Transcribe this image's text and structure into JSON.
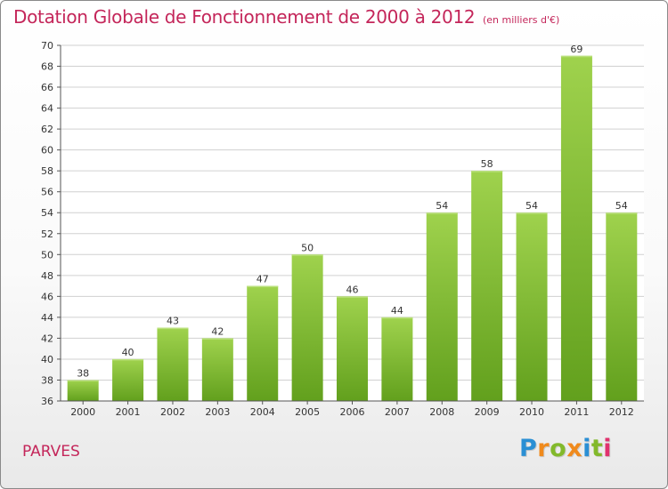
{
  "title": "Dotation Globale de Fonctionnement de 2000 à 2012",
  "subtitle": "(en milliers d'€)",
  "commune": "PARVES",
  "logo": {
    "text": "Proxiti",
    "letters": [
      {
        "ch": "P",
        "color": "#2a8fd4"
      },
      {
        "ch": "r",
        "color": "#f08a1c"
      },
      {
        "ch": "o",
        "color": "#82b92b"
      },
      {
        "ch": "x",
        "color": "#f08a1c"
      },
      {
        "ch": "i",
        "color": "#2a8fd4"
      },
      {
        "ch": "t",
        "color": "#82b92b"
      },
      {
        "ch": "i",
        "color": "#e0326e"
      }
    ]
  },
  "colors": {
    "title": "#c4265a",
    "bar_top": "#9fd24d",
    "bar_bottom": "#62a01d",
    "grid": "#d0d0d0",
    "axis": "#555555",
    "label": "#333333"
  },
  "chart_data": {
    "type": "bar",
    "categories": [
      "2000",
      "2001",
      "2002",
      "2003",
      "2004",
      "2005",
      "2006",
      "2007",
      "2008",
      "2009",
      "2010",
      "2011",
      "2012"
    ],
    "values": [
      38,
      40,
      43,
      42,
      47,
      50,
      46,
      44,
      54,
      58,
      54,
      69,
      54
    ],
    "ylim": [
      36,
      70
    ],
    "ytick_step": 2,
    "grid": true,
    "data_labels": true
  }
}
